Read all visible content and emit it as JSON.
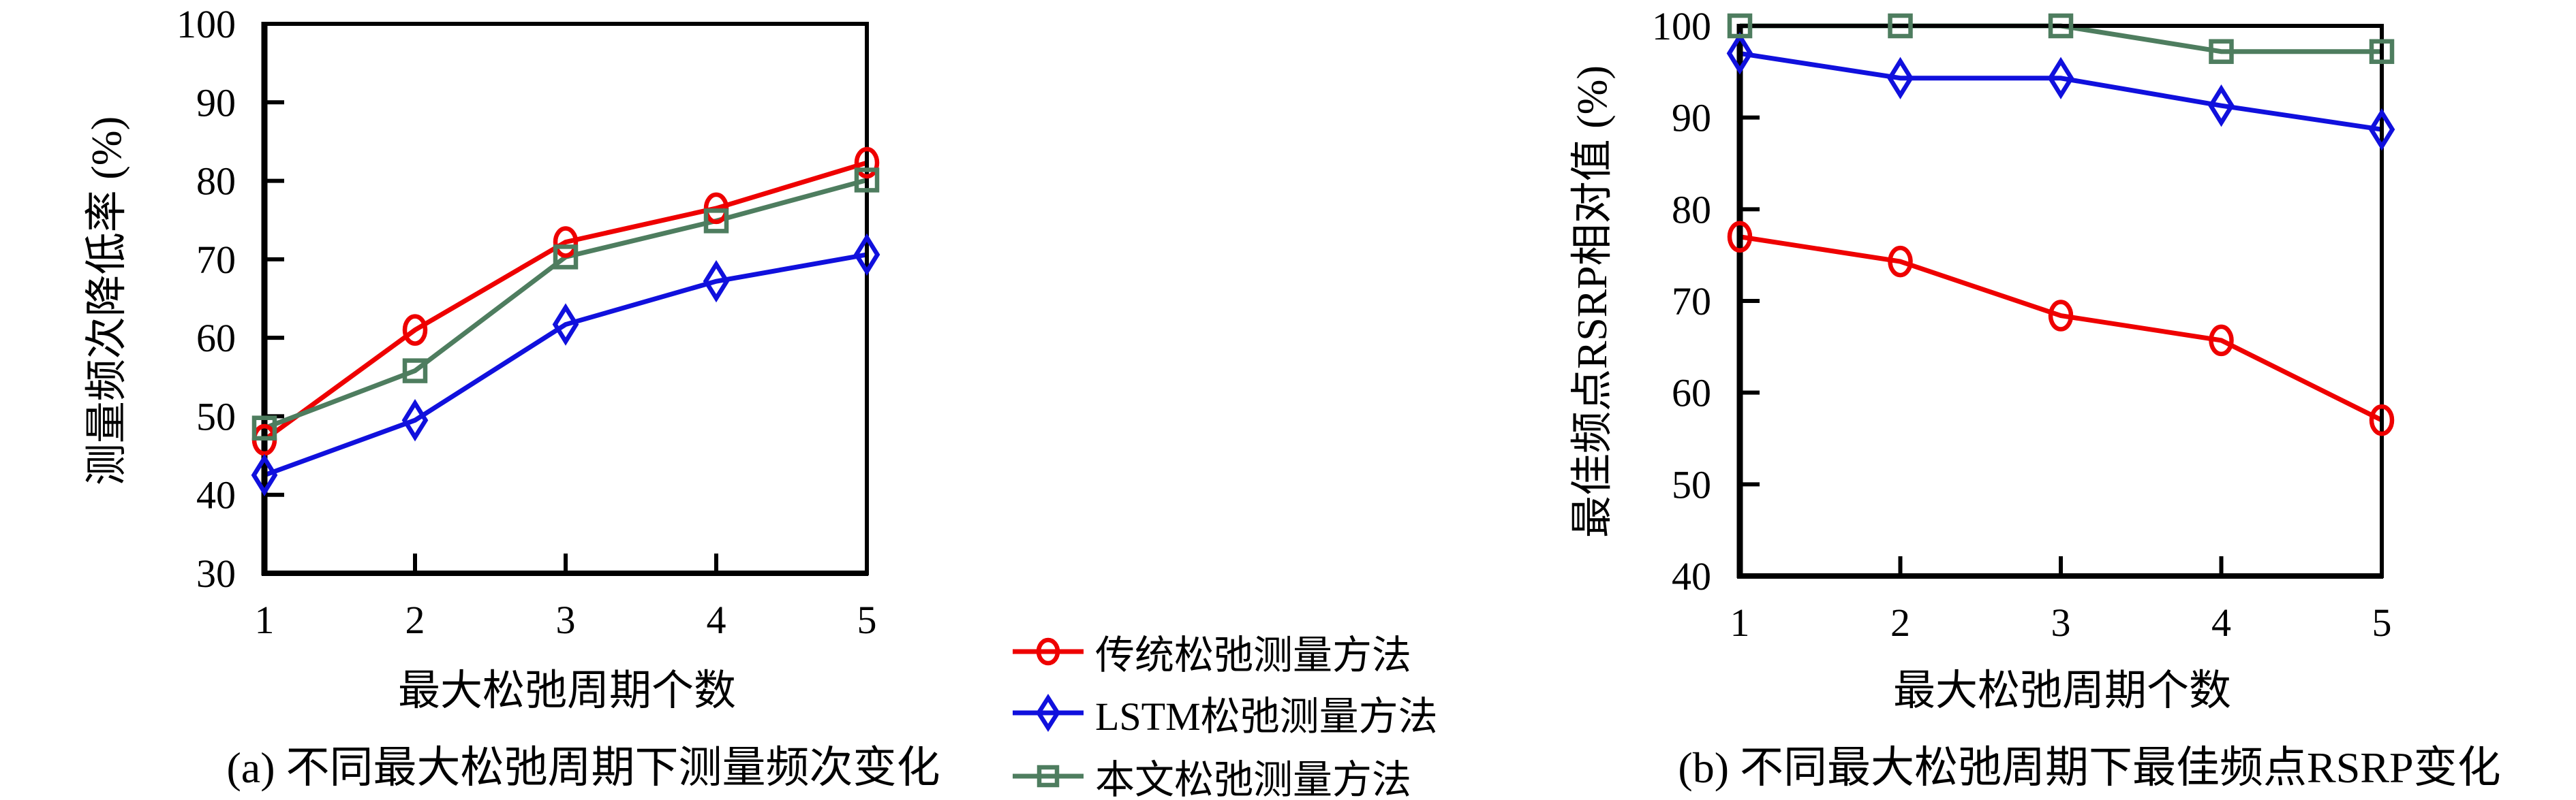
{
  "page": {
    "background": "#ffffff"
  },
  "colors": {
    "axis": "#000000",
    "traditional": "#ee0000",
    "lstm": "#1010dd",
    "proposed": "#4e7d5f"
  },
  "legend": {
    "items": [
      {
        "key": "traditional",
        "marker": "circle",
        "color": "#ee0000",
        "label": "传统松弛测量方法"
      },
      {
        "key": "lstm",
        "marker": "diamond",
        "color": "#1010dd",
        "label": "LSTM松弛测量方法"
      },
      {
        "key": "proposed",
        "marker": "square",
        "color": "#4e7d5f",
        "label": "本文松弛测量方法"
      }
    ]
  },
  "chart_data": [
    {
      "id": "chart-a",
      "type": "line",
      "title": "(a) 不同最大松弛周期下测量频次变化",
      "xlabel": "最大松弛周期个数",
      "ylabel": "测量频次降低率 (%)",
      "x": [
        1,
        2,
        3,
        4,
        5
      ],
      "xlim": [
        1,
        5
      ],
      "ylim": [
        30,
        100
      ],
      "xticks": [
        1,
        2,
        3,
        4,
        5
      ],
      "yticks": [
        30,
        40,
        50,
        60,
        70,
        80,
        90,
        100
      ],
      "grid": false,
      "legend_position": "outside-right",
      "series": [
        {
          "name": "传统松弛测量方法",
          "key": "traditional",
          "marker": "circle",
          "color": "#ee0000",
          "values": [
            47,
            61,
            72.2,
            76.5,
            82.3
          ]
        },
        {
          "name": "LSTM松弛测量方法",
          "key": "lstm",
          "marker": "diamond",
          "color": "#1010dd",
          "values": [
            42.5,
            49.5,
            61.7,
            67.2,
            70.6
          ]
        },
        {
          "name": "本文松弛测量方法",
          "key": "proposed",
          "marker": "square",
          "color": "#4e7d5f",
          "values": [
            48.5,
            55.8,
            70.3,
            74.9,
            80.1
          ]
        }
      ]
    },
    {
      "id": "chart-b",
      "type": "line",
      "title": "(b) 不同最大松弛周期下最佳频点RSRP变化",
      "xlabel": "最大松弛周期个数",
      "ylabel": "最佳频点RSRP相对值 (%)",
      "x": [
        1,
        2,
        3,
        4,
        5
      ],
      "xlim": [
        1,
        5
      ],
      "ylim": [
        40,
        100
      ],
      "xticks": [
        1,
        2,
        3,
        4,
        5
      ],
      "yticks": [
        40,
        50,
        60,
        70,
        80,
        90,
        100
      ],
      "grid": false,
      "legend_position": "outside-left",
      "series": [
        {
          "name": "传统松弛测量方法",
          "key": "traditional",
          "marker": "circle",
          "color": "#ee0000",
          "values": [
            77,
            74.3,
            68.4,
            65.7,
            57
          ]
        },
        {
          "name": "LSTM松弛测量方法",
          "key": "lstm",
          "marker": "diamond",
          "color": "#1010dd",
          "values": [
            97,
            94.3,
            94.3,
            91.3,
            88.7
          ]
        },
        {
          "name": "本文松弛测量方法",
          "key": "proposed",
          "marker": "square",
          "color": "#4e7d5f",
          "values": [
            100,
            100,
            100,
            97.2,
            97.2
          ]
        }
      ]
    }
  ]
}
